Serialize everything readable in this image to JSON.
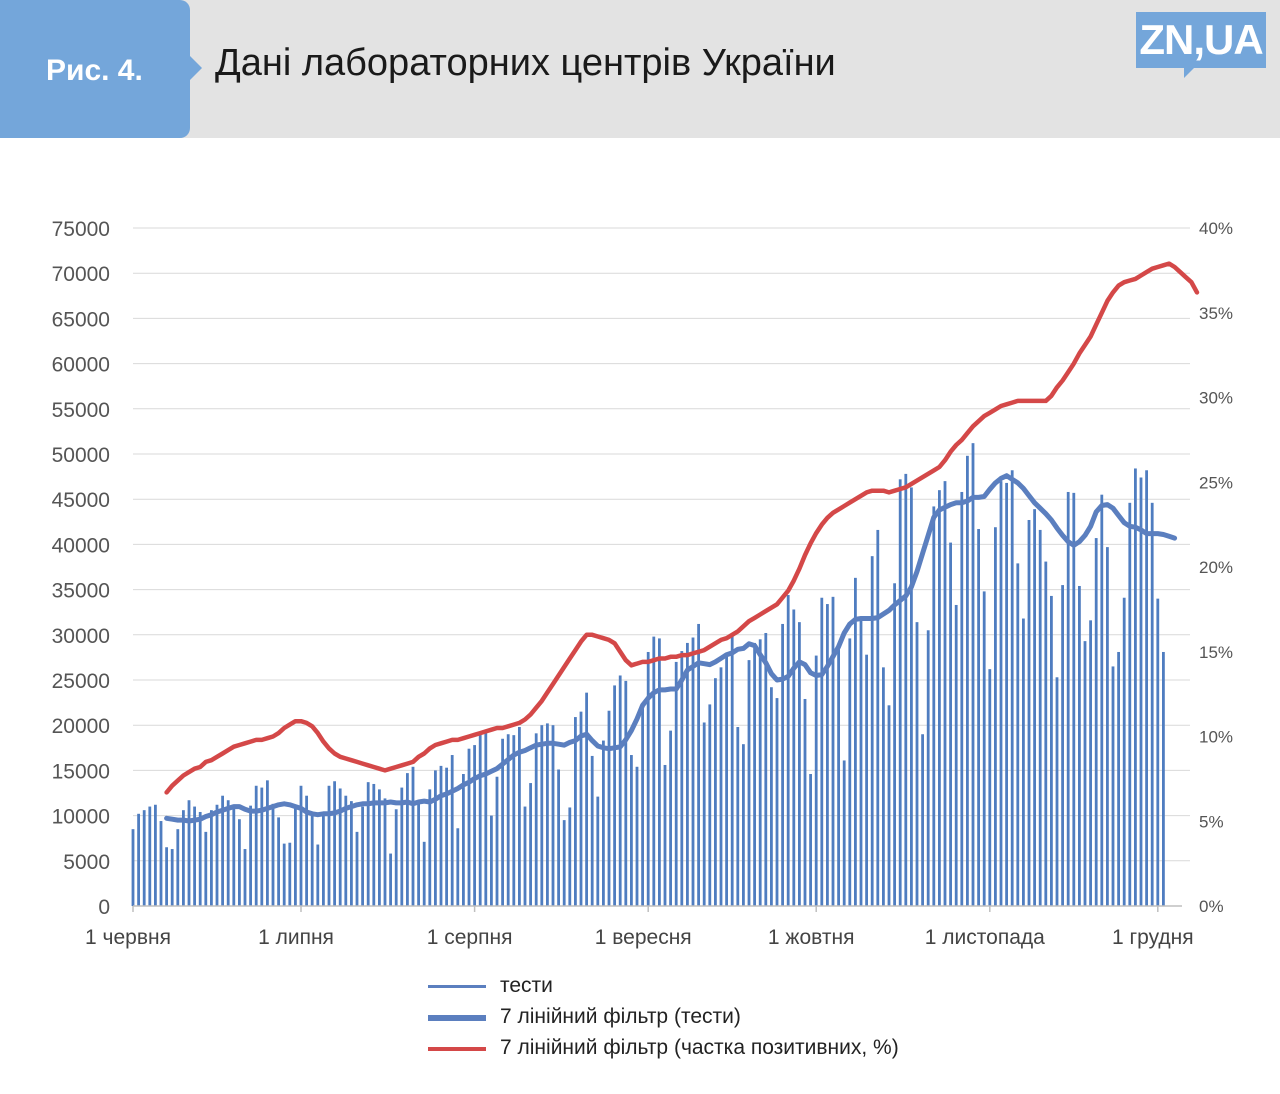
{
  "header": {
    "figure_label": "Рис. 4.",
    "title": "Дані лабораторних центрів України",
    "logo_text": "ZN,UA"
  },
  "colors": {
    "header_bg": "#e3e3e3",
    "accent": "#74a6da",
    "bars": "#4f7dc0",
    "smooth_tests": "#5b7fbf",
    "smooth_positive": "#d44848"
  },
  "legend": {
    "items": [
      {
        "label": "тести",
        "color": "#5b7fbf",
        "thickness": 3
      },
      {
        "label": "7 лінійний фільтр (тести)",
        "color": "#5b7fbf",
        "thickness": 6
      },
      {
        "label": "7 лінійний фільтр (частка позитивних, %)",
        "color": "#d44848",
        "thickness": 4
      }
    ]
  },
  "chart_data": {
    "type": "bar",
    "title": "",
    "xlabel": "",
    "ylabel": "",
    "ylim": [
      0,
      75000
    ],
    "y2lim": [
      0,
      40
    ],
    "y_ticks": [
      "0",
      "5000",
      "10000",
      "15000",
      "20000",
      "25000",
      "30000",
      "35000",
      "40000",
      "45000",
      "50000",
      "55000",
      "60000",
      "65000",
      "70000",
      "75000"
    ],
    "y2_ticks": [
      "0%",
      "5%",
      "10%",
      "15%",
      "20%",
      "25%",
      "30%",
      "35%",
      "40%"
    ],
    "x_ticks": [
      {
        "label": "1 червня",
        "day": 0
      },
      {
        "label": "1 липня",
        "day": 30
      },
      {
        "label": "1 серпня",
        "day": 61
      },
      {
        "label": "1 вересня",
        "day": 92
      },
      {
        "label": "1 жовтня",
        "day": 122
      },
      {
        "label": "1 листопада",
        "day": 153
      },
      {
        "label": "1 грудня",
        "day": 183
      }
    ],
    "grid": true,
    "legend_position": "bottom",
    "series": [
      {
        "name": "тести",
        "kind": "bar",
        "axis": "left",
        "start_day": 0,
        "values": [
          8500,
          10200,
          10600,
          11000,
          11200,
          9400,
          6500,
          6300,
          8500,
          10600,
          11700,
          11000,
          10400,
          8200,
          10600,
          11200,
          12200,
          11700,
          11200,
          9600,
          6300,
          11100,
          13300,
          13100,
          13900,
          11300,
          9800,
          6900,
          7000,
          10900,
          13300,
          12200,
          10300,
          6800,
          10000,
          13300,
          13800,
          13000,
          12200,
          11600,
          8200,
          11000,
          13700,
          13500,
          12900,
          11900,
          5800,
          10700,
          13100,
          14700,
          15400,
          11600,
          7100,
          12900,
          15000,
          15500,
          15300,
          16700,
          8600,
          14600,
          17400,
          17800,
          19100,
          19400,
          10000,
          14300,
          18500,
          19000,
          18900,
          19800,
          11000,
          13600,
          19100,
          20000,
          20200,
          20000,
          15100,
          9500,
          10900,
          20900,
          21500,
          23600,
          16600,
          12100,
          18300,
          21600,
          24400,
          25500,
          24900,
          16700,
          15400,
          22300,
          28100,
          29800,
          29600,
          15600,
          19400,
          27000,
          28200,
          29100,
          29700,
          31200,
          20300,
          22300,
          25200,
          26400,
          27600,
          29900,
          19800,
          17900,
          27200,
          29100,
          29500,
          30200,
          24200,
          23000,
          31200,
          34400,
          32800,
          31400,
          22900,
          14600,
          27700,
          34100,
          33400,
          34200,
          28400,
          16100,
          29600,
          36300,
          31900,
          27800,
          38700,
          41600,
          26400,
          22200,
          35700,
          47200,
          47800,
          46300,
          31400,
          19000,
          30500,
          44200,
          46000,
          47000,
          40200,
          33300,
          45800,
          49800,
          51200,
          41700,
          34800,
          26200,
          41900,
          47000,
          46800,
          48200,
          37900,
          31800,
          42700,
          43900,
          41600,
          38100,
          34300,
          25300,
          35500,
          45800,
          45700,
          35400,
          29300,
          31600,
          40700,
          45500,
          39700,
          26500,
          28100,
          34100,
          44600,
          48400,
          47400,
          48200,
          44600,
          34000,
          28100
        ]
      },
      {
        "name": "7 лінійний фільтр (тести)",
        "kind": "line",
        "axis": "left",
        "start_day": 6,
        "values": [
          9700,
          9600,
          9500,
          9500,
          9400,
          9500,
          9600,
          9900,
          10100,
          10400,
          10600,
          10800,
          11000,
          11000,
          10700,
          10500,
          10500,
          10600,
          10800,
          11000,
          11200,
          11300,
          11200,
          11000,
          10800,
          10400,
          10200,
          10100,
          10200,
          10200,
          10300,
          10500,
          10800,
          11000,
          11200,
          11300,
          11300,
          11400,
          11400,
          11400,
          11500,
          11400,
          11400,
          11500,
          11300,
          11500,
          11600,
          11500,
          11800,
          12200,
          12400,
          12700,
          13000,
          13400,
          13700,
          14100,
          14400,
          14600,
          14900,
          15200,
          15700,
          16200,
          16700,
          17000,
          17200,
          17500,
          17800,
          17900,
          18000,
          18000,
          17900,
          17800,
          18100,
          18300,
          18800,
          19000,
          18300,
          17700,
          17500,
          17400,
          17500,
          17600,
          18400,
          19400,
          20700,
          22200,
          23000,
          23600,
          23900,
          23900,
          24000,
          24000,
          25000,
          26100,
          26500,
          26900,
          26800,
          26700,
          27000,
          27400,
          27800,
          28000,
          28400,
          28500,
          29000,
          28800,
          27800,
          26900,
          25700,
          25000,
          25100,
          25400,
          26300,
          27000,
          26700,
          25800,
          25500,
          25600,
          26500,
          27600,
          28700,
          30200,
          31200,
          31700,
          31800,
          31800,
          31800,
          31900,
          32300,
          32700,
          33300,
          33800,
          34300,
          35300,
          37000,
          39000,
          41000,
          43000,
          43800,
          44100,
          44400,
          44600,
          44600,
          44800,
          45200,
          45200,
          45300,
          46100,
          46800,
          47300,
          47600,
          47200,
          46800,
          46200,
          45400,
          44600,
          44000,
          43400,
          42700,
          41800,
          41000,
          40300,
          39900,
          40300,
          41000,
          42000,
          43600,
          44300,
          44400,
          44000,
          43200,
          42400,
          42000,
          41900,
          41600,
          41200,
          41200,
          41200,
          41100,
          40900,
          40700
        ]
      },
      {
        "name": "7 лінійний фільтр (частка позитивних, %)",
        "kind": "line",
        "axis": "right",
        "start_day": 6,
        "values": [
          6.7,
          7.1,
          7.4,
          7.7,
          7.9,
          8.1,
          8.2,
          8.5,
          8.6,
          8.8,
          9.0,
          9.2,
          9.4,
          9.5,
          9.6,
          9.7,
          9.8,
          9.8,
          9.9,
          10.0,
          10.2,
          10.5,
          10.7,
          10.9,
          10.9,
          10.8,
          10.6,
          10.2,
          9.7,
          9.3,
          9.0,
          8.8,
          8.7,
          8.6,
          8.5,
          8.4,
          8.3,
          8.2,
          8.1,
          8.0,
          8.1,
          8.2,
          8.3,
          8.4,
          8.5,
          8.8,
          9.0,
          9.3,
          9.5,
          9.6,
          9.7,
          9.8,
          9.8,
          9.9,
          10.0,
          10.1,
          10.2,
          10.3,
          10.4,
          10.5,
          10.5,
          10.6,
          10.7,
          10.8,
          11.0,
          11.3,
          11.7,
          12.1,
          12.6,
          13.1,
          13.6,
          14.1,
          14.6,
          15.1,
          15.6,
          16.0,
          16.0,
          15.9,
          15.8,
          15.7,
          15.5,
          15.0,
          14.5,
          14.2,
          14.3,
          14.4,
          14.4,
          14.5,
          14.6,
          14.6,
          14.7,
          14.7,
          14.8,
          14.8,
          14.9,
          15.0,
          15.1,
          15.3,
          15.5,
          15.7,
          15.8,
          16.0,
          16.2,
          16.5,
          16.8,
          17.0,
          17.2,
          17.4,
          17.6,
          17.8,
          18.2,
          18.6,
          19.2,
          19.9,
          20.7,
          21.4,
          22.0,
          22.5,
          22.9,
          23.2,
          23.4,
          23.6,
          23.8,
          24.0,
          24.2,
          24.4,
          24.5,
          24.5,
          24.5,
          24.4,
          24.5,
          24.6,
          24.7,
          24.9,
          25.1,
          25.3,
          25.5,
          25.7,
          25.9,
          26.3,
          26.8,
          27.2,
          27.5,
          27.9,
          28.3,
          28.6,
          28.9,
          29.1,
          29.3,
          29.5,
          29.6,
          29.7,
          29.8,
          29.8,
          29.8,
          29.8,
          29.8,
          29.8,
          30.1,
          30.6,
          31.0,
          31.5,
          32.0,
          32.6,
          33.1,
          33.6,
          34.3,
          35.0,
          35.7,
          36.2,
          36.6,
          36.8,
          36.9,
          37.0,
          37.2,
          37.4,
          37.6,
          37.7,
          37.8,
          37.9,
          37.7,
          37.4,
          37.1,
          36.8,
          36.2
        ]
      }
    ]
  }
}
